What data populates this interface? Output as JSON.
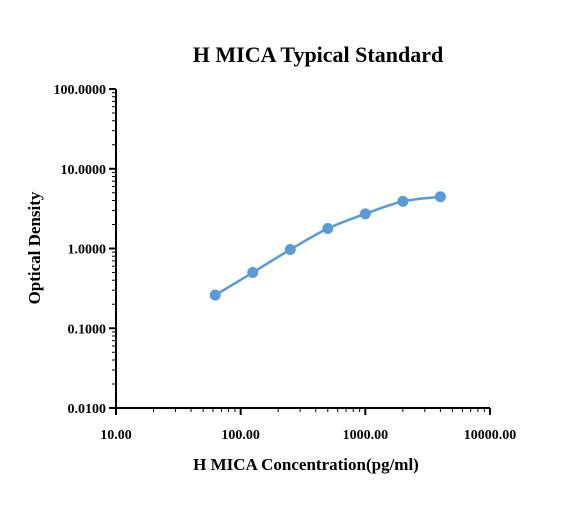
{
  "chart_data": {
    "type": "scatter",
    "title": "H MICA Typical Standard",
    "xlabel": "H MICA Concentration(pg/ml)",
    "ylabel": "Optical Density",
    "x_scale": "log",
    "y_scale": "log",
    "xlim": [
      10,
      10000
    ],
    "ylim": [
      0.01,
      100
    ],
    "x_ticks": [
      10,
      100,
      1000,
      10000
    ],
    "x_tick_labels": [
      "10.00",
      "100.00",
      "1000.00",
      "10000.00"
    ],
    "y_ticks": [
      0.01,
      0.1,
      1,
      10,
      100
    ],
    "y_tick_labels": [
      "0.0100",
      "0.1000",
      "1.0000",
      "10.0000",
      "100.0000"
    ],
    "grid": false,
    "series": [
      {
        "x": [
          62.5,
          125,
          250,
          500,
          1000,
          2000,
          4000
        ],
        "y": [
          0.26,
          0.5,
          0.97,
          1.78,
          2.72,
          3.9,
          4.45
        ],
        "fit_curve": true
      }
    ],
    "colors": {
      "series": "#5b9bd5",
      "axis": "#000000"
    }
  }
}
